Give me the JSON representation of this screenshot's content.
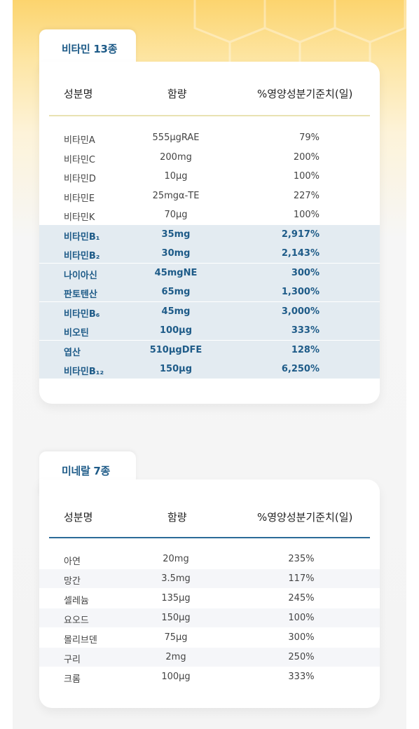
{
  "colors": {
    "accent": "#1e5b88",
    "vitamin_line": "#e9e2b2",
    "mineral_line": "#2b6b98",
    "highlight_row": "#e3ebf1",
    "zebra_row": "#f5f6f9"
  },
  "vitamins": {
    "tab_label": "비타민 13종",
    "headers": {
      "name": "성분명",
      "amount": "함량",
      "percent": "%영양성분기준치(일)"
    },
    "rows": [
      {
        "name": "비타민A",
        "amount": "555μgRAE",
        "percent": "79%"
      },
      {
        "name": "비타민C",
        "amount": "200mg",
        "percent": "200%"
      },
      {
        "name": "비타민D",
        "amount": "10μg",
        "percent": "100%"
      },
      {
        "name": "비타민E",
        "amount": "25mgα-TE",
        "percent": "227%"
      },
      {
        "name": "비타민K",
        "amount": "70μg",
        "percent": "100%"
      },
      {
        "name": "비타민B₁",
        "amount": "35mg",
        "percent": "2,917%"
      },
      {
        "name": "비타민B₂",
        "amount": "30mg",
        "percent": "2,143%"
      },
      {
        "name": "나이아신",
        "amount": "45mgNE",
        "percent": "300%"
      },
      {
        "name": "판토텐산",
        "amount": "65mg",
        "percent": "1,300%"
      },
      {
        "name": "비타민B₆",
        "amount": "45mg",
        "percent": "3,000%"
      },
      {
        "name": "비오틴",
        "amount": "100μg",
        "percent": "333%"
      },
      {
        "name": "엽산",
        "amount": "510μgDFE",
        "percent": "128%"
      },
      {
        "name": "비타민B₁₂",
        "amount": "150μg",
        "percent": "6,250%"
      }
    ]
  },
  "minerals": {
    "tab_label": "미네랄 7종",
    "headers": {
      "name": "성분명",
      "amount": "함량",
      "percent": "%영양성분기준치(일)"
    },
    "rows": [
      {
        "name": "아연",
        "amount": "20mg",
        "percent": "235%"
      },
      {
        "name": "망간",
        "amount": "3.5mg",
        "percent": "117%"
      },
      {
        "name": "셀레늄",
        "amount": "135μg",
        "percent": "245%"
      },
      {
        "name": "요오드",
        "amount": "150μg",
        "percent": "100%"
      },
      {
        "name": "몰리브덴",
        "amount": "75μg",
        "percent": "300%"
      },
      {
        "name": "구리",
        "amount": "2mg",
        "percent": "250%"
      },
      {
        "name": "크롬",
        "amount": "100μg",
        "percent": "333%"
      }
    ]
  }
}
